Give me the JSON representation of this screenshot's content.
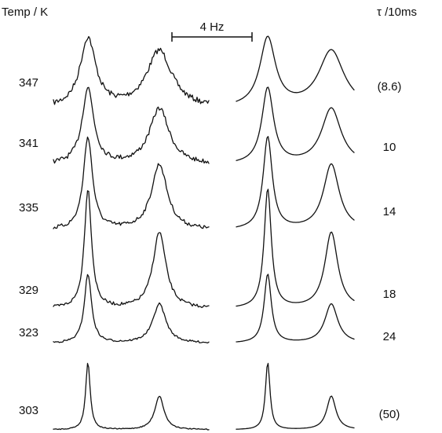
{
  "chart_data": {
    "type": "line",
    "title": "",
    "left_header": "Temp / K",
    "right_header": "τ /10ms",
    "scale_bar_label": "4 Hz",
    "series": [
      {
        "temp": "347",
        "tau": "(8.6)",
        "peak_ratio": 0.83
      },
      {
        "temp": "341",
        "tau": "10",
        "peak_ratio": 0.74
      },
      {
        "temp": "335",
        "tau": "14",
        "peak_ratio": 0.71
      },
      {
        "temp": "329",
        "tau": "18",
        "peak_ratio": 0.64
      },
      {
        "temp": "323",
        "tau": "24",
        "peak_ratio": 0.57
      },
      {
        "temp": "303",
        "tau": "(50)",
        "peak_ratio": 0.5
      }
    ]
  }
}
